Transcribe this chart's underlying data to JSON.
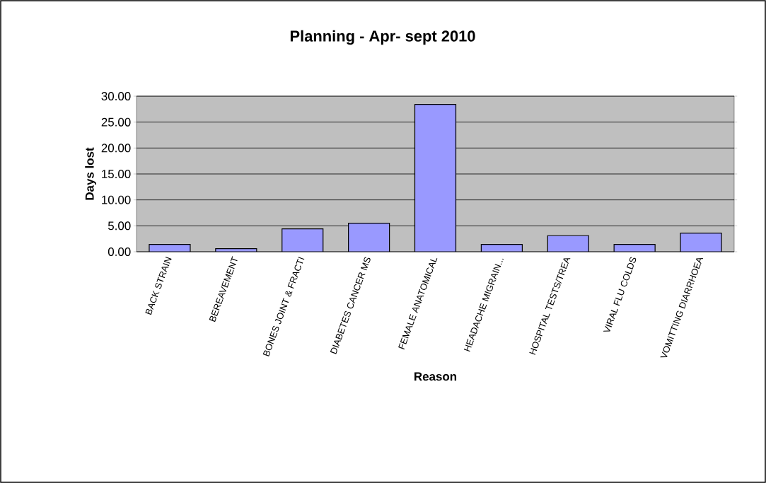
{
  "chart_data": {
    "type": "bar",
    "title": "Planning - Apr- sept 2010",
    "xlabel": "Reason",
    "ylabel": "Days lost",
    "categories": [
      "BACK STRAIN",
      "BEREAVEMENT",
      "BONES JOINT & FRACTI",
      "DIABETES CANCER MS",
      "FEMALE ANATOMICAL",
      "HEADACHE MIGRAIN...",
      "HOSPITAL  TESTS/TREA",
      "VIRAL  FLU COLDS",
      "VOMITTING DIARRHOEA"
    ],
    "values": [
      1.4,
      0.6,
      4.4,
      5.5,
      28.4,
      1.4,
      3.1,
      1.4,
      3.6
    ],
    "color": "#9999ff",
    "ylim": [
      0,
      30
    ],
    "yticks": [
      {
        "value": 0,
        "label": "0.00"
      },
      {
        "value": 5,
        "label": "5.00"
      },
      {
        "value": 10,
        "label": "10.00"
      },
      {
        "value": 15,
        "label": "15.00"
      },
      {
        "value": 20,
        "label": "20.00"
      },
      {
        "value": 25,
        "label": "25.00"
      },
      {
        "value": 30,
        "label": "30.00"
      }
    ],
    "grid": "y"
  }
}
